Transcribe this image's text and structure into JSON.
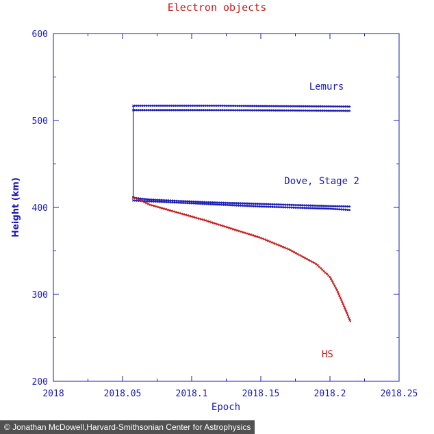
{
  "chart_data": {
    "type": "line",
    "title": "Electron objects",
    "xlabel": "Epoch",
    "ylabel": "Height (km)",
    "xlim": [
      2018,
      2018.25
    ],
    "ylim": [
      200,
      600
    ],
    "x_ticks": [
      2018,
      2018.05,
      2018.1,
      2018.15,
      2018.2,
      2018.25
    ],
    "x_tick_labels": [
      "2018",
      "2018.05",
      "2018.1",
      "2018.15",
      "2018.2",
      "2018.25"
    ],
    "y_ticks": [
      200,
      300,
      400,
      500,
      600
    ],
    "y_tick_labels": [
      "200",
      "300",
      "400",
      "500",
      "600"
    ],
    "grid": false,
    "series": [
      {
        "name": "Lemurs (upper)",
        "color": "#1a1ab4",
        "x": [
          2018.0577,
          2018.08,
          2018.1,
          2018.12,
          2018.14,
          2018.16,
          2018.18,
          2018.2,
          2018.215
        ],
        "y": [
          517,
          517,
          517,
          517,
          516.8,
          516.6,
          516.4,
          516.2,
          516
        ]
      },
      {
        "name": "Lemurs (lower)",
        "color": "#1a1ab4",
        "x": [
          2018.0577,
          2018.08,
          2018.1,
          2018.12,
          2018.14,
          2018.16,
          2018.18,
          2018.2,
          2018.215
        ],
        "y": [
          512,
          512,
          512,
          511.9,
          511.8,
          511.6,
          511.4,
          511.2,
          511
        ]
      },
      {
        "name": "Dove, Stage 2 (a)",
        "color": "#1a1ab4",
        "x": [
          2018.0577,
          2018.07,
          2018.09,
          2018.11,
          2018.13,
          2018.15,
          2018.17,
          2018.19,
          2018.2,
          2018.215
        ],
        "y": [
          411,
          409,
          407.5,
          406,
          405,
          404,
          403,
          402,
          401.5,
          401
        ]
      },
      {
        "name": "Dove, Stage 2 (b)",
        "color": "#1a1ab4",
        "x": [
          2018.0577,
          2018.07,
          2018.09,
          2018.11,
          2018.13,
          2018.15,
          2018.17,
          2018.19,
          2018.2,
          2018.215
        ],
        "y": [
          408,
          407,
          405.5,
          404,
          402.5,
          401,
          400,
          399,
          398.5,
          397
        ]
      },
      {
        "name": "HS",
        "color": "#c21a1a",
        "x": [
          2018.0577,
          2018.07,
          2018.09,
          2018.11,
          2018.13,
          2018.15,
          2018.17,
          2018.19,
          2018.2,
          2018.205,
          2018.21,
          2018.215
        ],
        "y": [
          412,
          403,
          394,
          385,
          375,
          365,
          352,
          335,
          320,
          305,
          287,
          268
        ]
      }
    ],
    "connector": {
      "x": 2018.0577,
      "y": [
        411,
        517
      ],
      "color": "#1a1ab4"
    },
    "annotations": [
      {
        "text": "Lemurs",
        "x": 2018.185,
        "y": 538,
        "color": "#1a1ab4"
      },
      {
        "text": "Dove, Stage 2",
        "x": 2018.167,
        "y": 429,
        "color": "#1a1ab4"
      },
      {
        "text": "HS",
        "x": 2018.194,
        "y": 230,
        "color": "#c21a1a"
      }
    ]
  },
  "credit": "© Jonathan McDowell,Harvard-Smithsonian Center for Astrophysics"
}
